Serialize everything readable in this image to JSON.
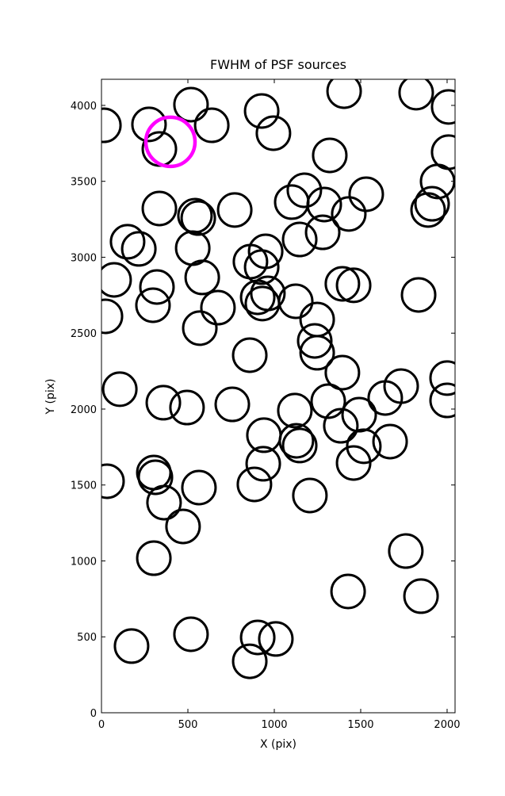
{
  "chart_data": {
    "type": "scatter",
    "title": "FWHM of PSF sources",
    "x_label": "X (pix)",
    "y_label": "Y (pix)",
    "xlim": [
      0,
      2046
    ],
    "ylim": [
      0,
      4172
    ],
    "xticks": [
      0,
      500,
      1000,
      1500,
      2000
    ],
    "yticks": [
      0,
      500,
      1000,
      1500,
      2000,
      2500,
      3000,
      3500,
      4000
    ],
    "series": [
      {
        "color": "#000000",
        "x": [
          14,
          275,
          518,
          335,
          638,
          927,
          995,
          1404,
          1821,
          2009,
          1321,
          2009,
          1945,
          1913,
          1890,
          1174,
          1101,
          1289,
          1532,
          1431,
          335,
          541,
          560,
          771,
          151,
          216,
          528,
          1147,
          1280,
          950,
          862,
          927,
          73,
          321,
          583,
          963,
          904,
          931,
          1124,
          1394,
          1459,
          1835,
          298,
          674,
          23,
          569,
          1248,
          1234,
          1248,
          858,
          1394,
          106,
          358,
          495,
          757,
          1734,
          1642,
          2000,
          2000,
          1312,
          1491,
          1119,
          1385,
          940,
          1128,
          1147,
          1518,
          1670,
          1459,
          936,
          303,
          312,
          32,
          564,
          885,
          1206,
          362,
          472,
          303,
          1761,
          1427,
          1849,
          174,
          518,
          904,
          1009,
          858
        ],
        "y": [
          3869,
          3875,
          4005,
          3713,
          3869,
          3963,
          3817,
          4094,
          4084,
          3990,
          3671,
          3692,
          3499,
          3352,
          3311,
          3441,
          3363,
          3347,
          3415,
          3285,
          3321,
          3274,
          3258,
          3311,
          3102,
          3055,
          3060,
          3117,
          3164,
          3039,
          2971,
          2935,
          2851,
          2804,
          2867,
          2762,
          2736,
          2695,
          2710,
          2825,
          2815,
          2752,
          2684,
          2668,
          2611,
          2533,
          2590,
          2449,
          2371,
          2355,
          2240,
          2131,
          2042,
          2010,
          2031,
          2151,
          2073,
          2204,
          2057,
          2052,
          1963,
          1990,
          1890,
          1828,
          1791,
          1760,
          1755,
          1786,
          1645,
          1640,
          1582,
          1551,
          1525,
          1483,
          1504,
          1431,
          1384,
          1227,
          1018,
          1065,
          799,
          768,
          439,
          517,
          496,
          486,
          339
        ]
      },
      {
        "color": "#ff00ff",
        "x": [
          399
        ],
        "y": [
          3760
        ]
      }
    ]
  }
}
